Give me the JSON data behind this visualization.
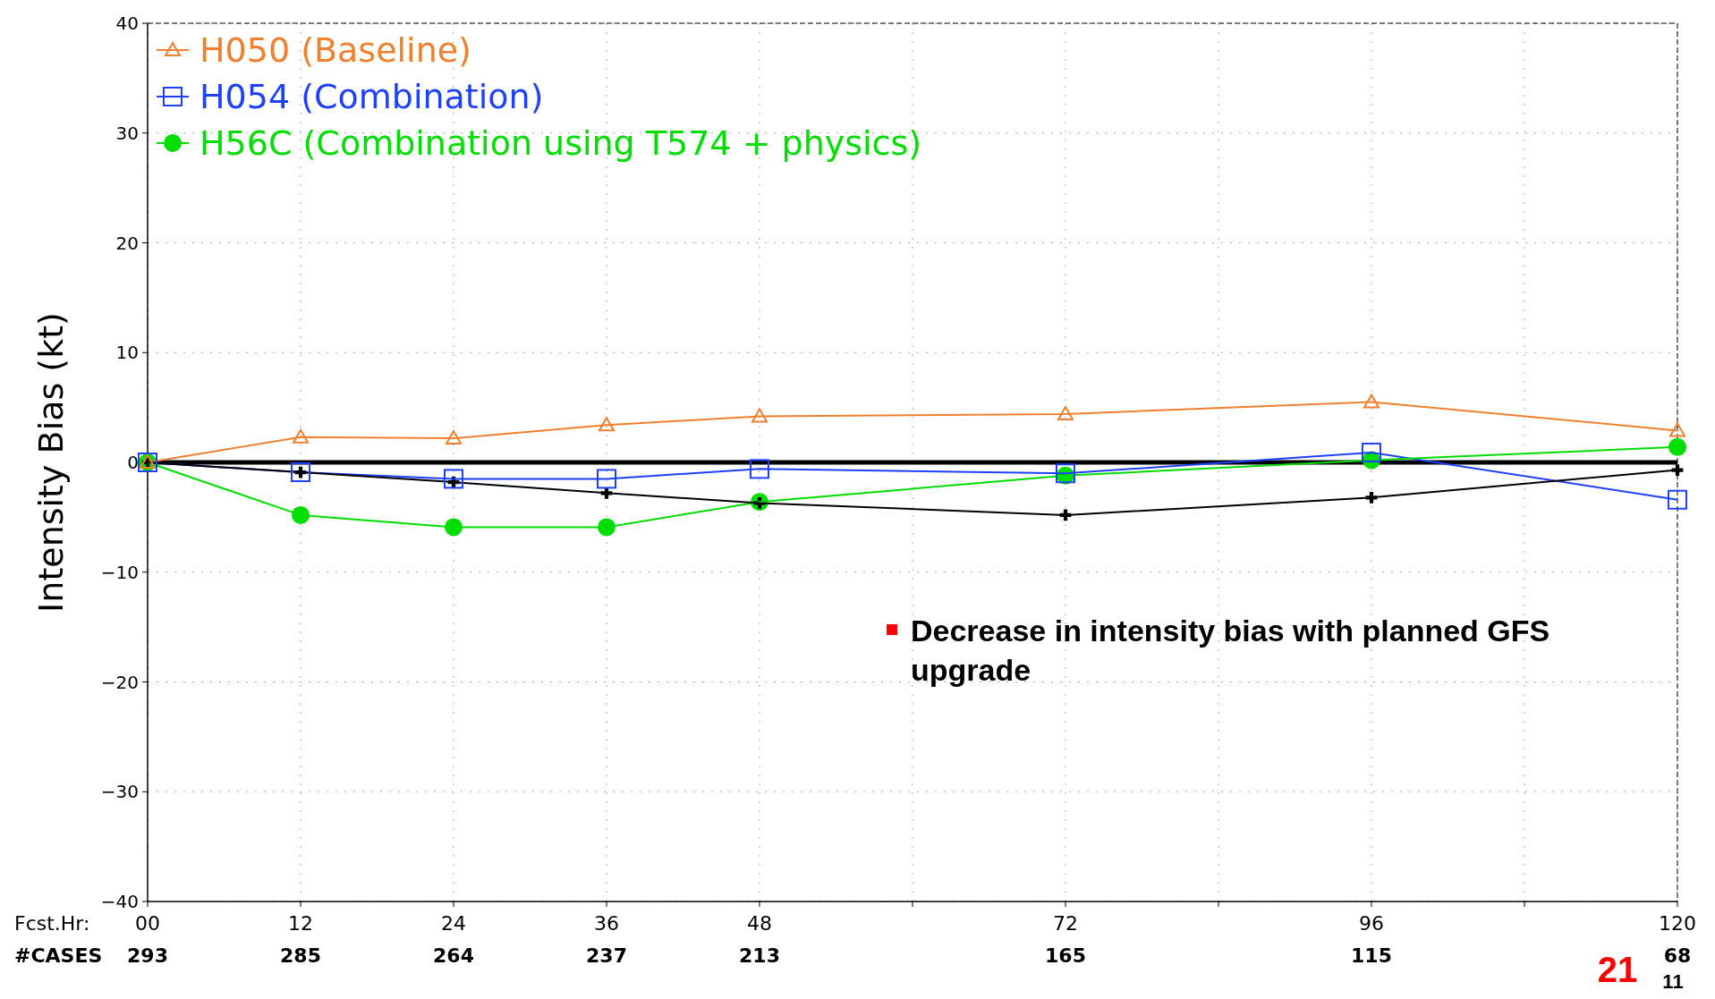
{
  "chart_data": {
    "type": "line",
    "ylabel": "Intensity Bias (kt)",
    "xlabel": "Fcst.Hr:",
    "x": [
      0,
      12,
      24,
      36,
      48,
      72,
      96,
      120
    ],
    "xlim": [
      0,
      120
    ],
    "xticks": [
      {
        "value": 0,
        "label": "00"
      },
      12,
      24,
      36,
      48,
      {
        "value": 60,
        "label": null
      },
      72,
      {
        "value": 84,
        "label": null
      },
      96,
      {
        "value": 108,
        "label": null
      },
      120
    ],
    "ylim": [
      -40,
      40
    ],
    "yticks": [
      -40,
      -30,
      -20,
      -10,
      0,
      10,
      20,
      30,
      40
    ],
    "grid": true,
    "legend": "top left",
    "line_style": "solid",
    "series": [
      {
        "name": "H050 (Baseline)",
        "color": "#f08030",
        "marker": "triangle",
        "values": [
          0,
          2.3,
          2.2,
          3.4,
          4.2,
          4.4,
          5.5,
          2.9
        ]
      },
      {
        "name": "H054 (Combination)",
        "color": "#2040ff",
        "marker": "square",
        "values": [
          0,
          -0.9,
          -1.5,
          -1.5,
          -0.6,
          -1.0,
          0.9,
          -3.4
        ]
      },
      {
        "name": "H56C (Combination using T574 + physics)",
        "color": "#00dd00",
        "marker": "circle",
        "values": [
          0,
          -4.8,
          -5.9,
          -5.9,
          -3.6,
          -1.2,
          0.2,
          1.4
        ]
      },
      {
        "color": "#000000",
        "marker": "cross",
        "values": [
          0,
          -0.9,
          -1.8,
          -2.8,
          -3.7,
          -4.8,
          -3.2,
          -0.7
        ]
      }
    ],
    "ref_lines": [
      {
        "axis": "y",
        "value": 0,
        "color": "#000000"
      }
    ],
    "annotations": [
      "#CASES",
      "293",
      "285",
      "264",
      "237",
      "213",
      "165",
      "115",
      "68",
      "Decrease in intensity bias with planned GFS upgrade",
      "21",
      "11"
    ]
  }
}
